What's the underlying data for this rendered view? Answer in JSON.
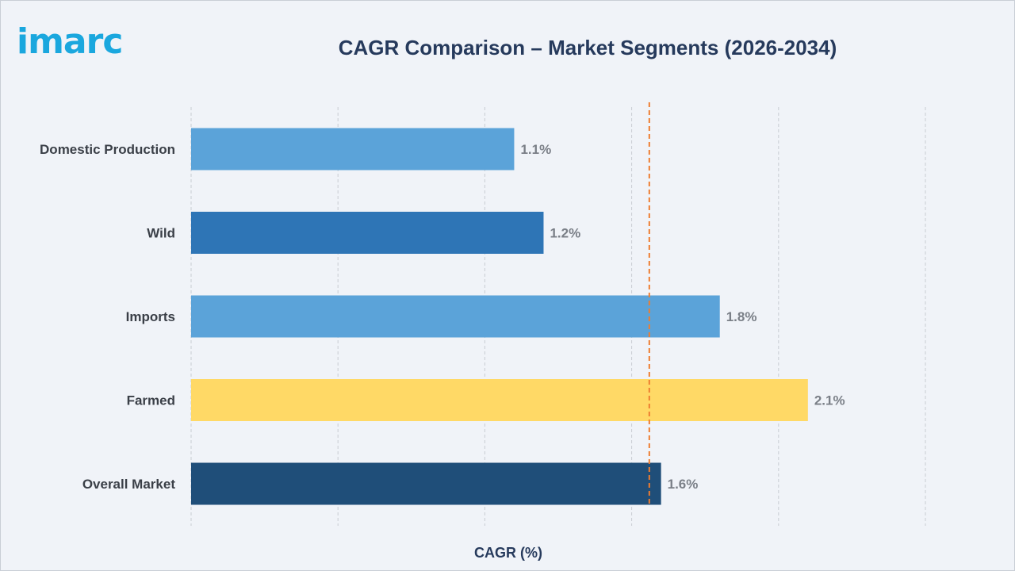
{
  "logo_text": "imarc",
  "chart_data": {
    "type": "bar",
    "orientation": "horizontal",
    "title": "CAGR Comparison – Market Segments (2026-2034)",
    "xlabel": "CAGR (%)",
    "ylabel": "",
    "categories": [
      "Domestic Production",
      "Wild",
      "Imports",
      "Farmed",
      "Overall Market"
    ],
    "values": [
      1.1,
      1.2,
      1.8,
      2.1,
      1.6
    ],
    "value_labels": [
      "1.1%",
      "1.2%",
      "1.8%",
      "2.1%",
      "1.6%"
    ],
    "colors": [
      "#5ba3d9",
      "#2e75b6",
      "#5ba3d9",
      "#ffd966",
      "#1f4e79"
    ],
    "xlim": [
      0,
      2.5
    ],
    "grid": true,
    "reference_line": {
      "value": 1.56,
      "style": "dashed",
      "color": "#ed7d31"
    }
  }
}
